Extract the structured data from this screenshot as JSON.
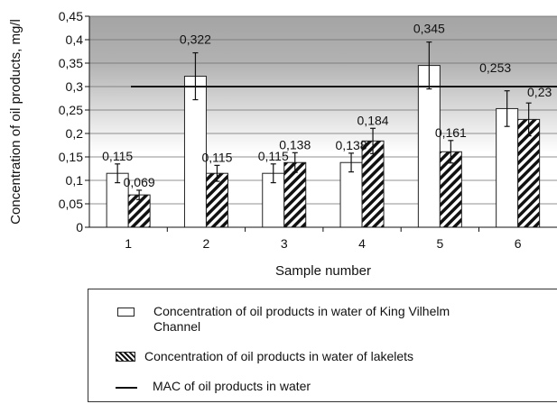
{
  "chart_data": {
    "type": "bar",
    "categories": [
      "1",
      "2",
      "3",
      "4",
      "5",
      "6"
    ],
    "series": [
      {
        "name": "Concentration of oil products in water of King Vilhelm Channel",
        "values": [
          0.115,
          0.322,
          0.115,
          0.138,
          0.345,
          0.253
        ],
        "labels": [
          "0,115",
          "0,322",
          "0,115",
          "0,138",
          "0,345",
          "0,253"
        ],
        "error": [
          0.02,
          0.05,
          0.02,
          0.02,
          0.05,
          0.038
        ],
        "fill": "white"
      },
      {
        "name": "Concentration of oil products in water of lakelets",
        "values": [
          0.069,
          0.115,
          0.138,
          0.184,
          0.161,
          0.23
        ],
        "labels": [
          "0,069",
          "0,115",
          "0,138",
          "0,184",
          "0,161",
          "0,23"
        ],
        "error": [
          0.01,
          0.017,
          0.021,
          0.027,
          0.024,
          0.035
        ],
        "fill": "hatched"
      }
    ],
    "reference_line": {
      "name": "MAC of oil products in water",
      "value": 0.3
    },
    "xlabel": "Sample number",
    "ylabel": "Concentration of oil products, mg/l",
    "ylim": [
      0,
      0.45
    ],
    "yticks": [
      "0",
      "0,05",
      "0,1",
      "0,15",
      "0,2",
      "0,25",
      "0,3",
      "0,35",
      "0,4",
      "0,45"
    ],
    "grid": true,
    "legend_position": "bottom",
    "colors": {
      "plot_top": "#a6a6a6",
      "plot_bottom": "#ffffff",
      "bar_outline": "#222222",
      "line": "#111111"
    }
  }
}
